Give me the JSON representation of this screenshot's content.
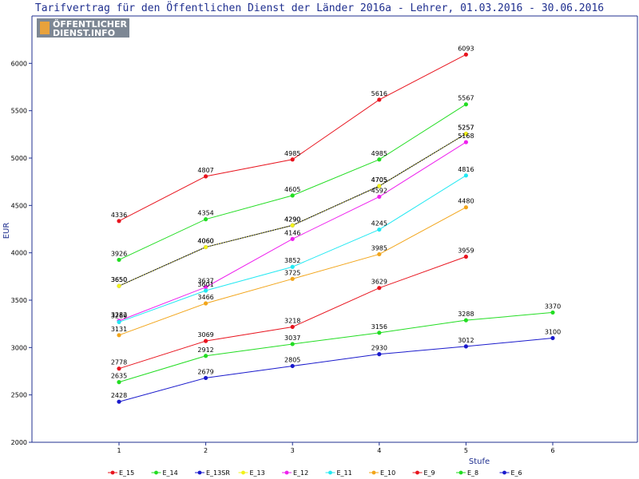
{
  "chart_data": {
    "type": "line",
    "title": "Tarifvertrag für den Öffentlichen Dienst der Länder 2016a - Lehrer, 01.03.2016 - 30.06.2016",
    "xlabel": "Stufe",
    "ylabel": "EUR",
    "ylim": [
      2000,
      6500
    ],
    "yticks": [
      2000,
      2500,
      3000,
      3500,
      4000,
      4500,
      5000,
      5500,
      6000
    ],
    "xticks": [
      1,
      2,
      3,
      4,
      5,
      6
    ],
    "grid": false,
    "legend_position": "bottom",
    "series": [
      {
        "name": "E_15",
        "color": "#e8141e",
        "x": [
          1,
          2,
          3,
          4,
          5
        ],
        "values": [
          4336,
          4807,
          4985,
          5616,
          6093
        ]
      },
      {
        "name": "E_14",
        "color": "#22dd22",
        "x": [
          1,
          2,
          3,
          4,
          5
        ],
        "values": [
          3926,
          4354,
          4605,
          4985,
          5567
        ]
      },
      {
        "name": "E_13SR",
        "color": "#1a1acc",
        "x": [
          1,
          2,
          3,
          4,
          5
        ],
        "values": [
          3650,
          4060,
          4290,
          4705,
          5257
        ]
      },
      {
        "name": "E_13",
        "color": "#f2f21a",
        "x": [
          1,
          2,
          3,
          4,
          5
        ],
        "values": [
          3650,
          4060,
          4290,
          4705,
          5257
        ]
      },
      {
        "name": "E_12",
        "color": "#ee22ee",
        "x": [
          1,
          2,
          3,
          4,
          5
        ],
        "values": [
          3282,
          3637,
          4146,
          4592,
          5168
        ]
      },
      {
        "name": "E_11",
        "color": "#22e8f2",
        "x": [
          1,
          2,
          3,
          4,
          5
        ],
        "values": [
          3269,
          3601,
          3852,
          4245,
          4816
        ]
      },
      {
        "name": "E_10",
        "color": "#f2a51a",
        "x": [
          1,
          2,
          3,
          4,
          5
        ],
        "values": [
          3131,
          3466,
          3725,
          3985,
          4480
        ]
      },
      {
        "name": "E_9",
        "color": "#e8141e",
        "x": [
          1,
          2,
          3,
          4,
          5
        ],
        "values": [
          2778,
          3069,
          3218,
          3629,
          3959
        ]
      },
      {
        "name": "E_8",
        "color": "#22dd22",
        "x": [
          1,
          2,
          3,
          4,
          5,
          6
        ],
        "values": [
          2635,
          2912,
          3037,
          3156,
          3288,
          3370
        ]
      },
      {
        "name": "E_6",
        "color": "#1a1acc",
        "x": [
          1,
          2,
          3,
          4,
          5,
          6
        ],
        "values": [
          2428,
          2679,
          2805,
          2930,
          3012,
          3100
        ]
      }
    ]
  },
  "logo": {
    "line1": "ÖFFENTLICHER",
    "line2": "DIENST.INFO"
  }
}
